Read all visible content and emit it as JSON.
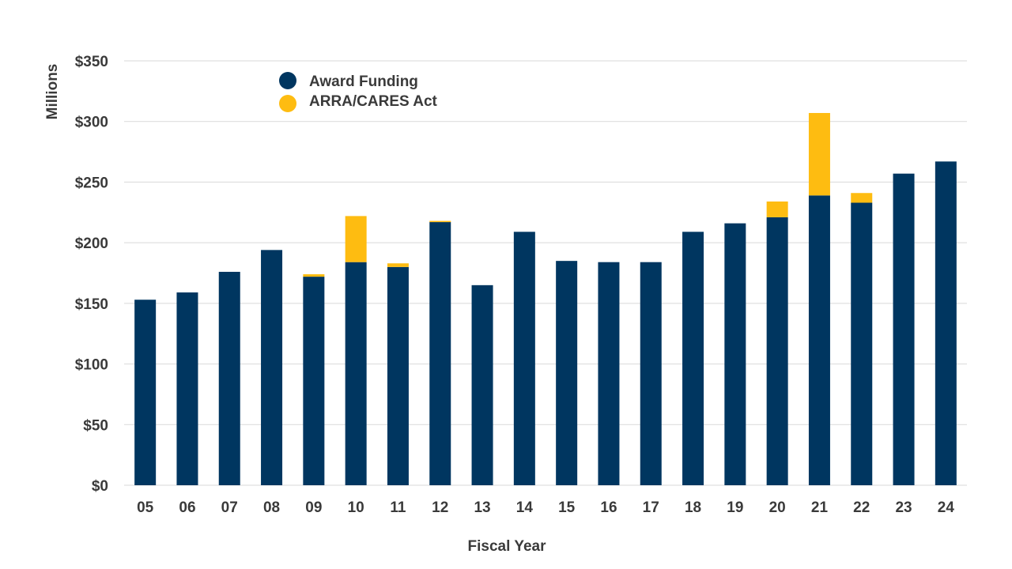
{
  "colors": {
    "award": "#003660",
    "arra": "#FEBC11"
  },
  "chart_data": {
    "type": "bar",
    "stacked": true,
    "title": "",
    "xlabel": "Fiscal Year",
    "ylabel": "Millions",
    "ylim": [
      0,
      350
    ],
    "yticks": [
      0,
      50,
      100,
      150,
      200,
      250,
      300,
      350
    ],
    "ytick_labels": [
      "$0",
      "$50",
      "$100",
      "$150",
      "$200",
      "$250",
      "$300",
      "$350"
    ],
    "grid": true,
    "legend_position": "top-left",
    "categories": [
      "05",
      "06",
      "07",
      "08",
      "09",
      "10",
      "11",
      "12",
      "13",
      "14",
      "15",
      "16",
      "17",
      "18",
      "19",
      "20",
      "21",
      "22",
      "23",
      "24"
    ],
    "series": [
      {
        "name": "Award Funding",
        "color": "#003660",
        "values": [
          153,
          159,
          176,
          194,
          172,
          184,
          180,
          217,
          165,
          209,
          185,
          184,
          184,
          209,
          216,
          221,
          239,
          233,
          257,
          267
        ]
      },
      {
        "name": "ARRA/CARES Act",
        "color": "#FEBC11",
        "values": [
          0,
          0,
          0,
          0,
          2,
          38,
          3,
          1,
          0,
          0,
          0,
          0,
          0,
          0,
          0,
          13,
          68,
          8,
          0,
          0
        ]
      }
    ]
  }
}
